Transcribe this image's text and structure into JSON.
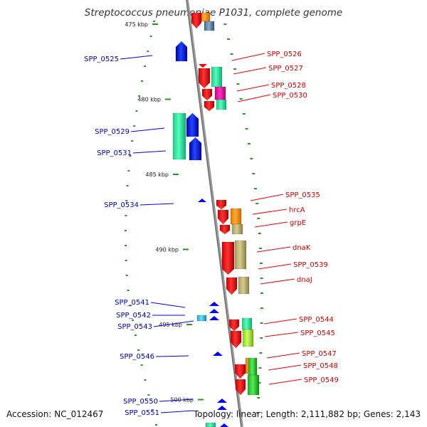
{
  "title": "Streptococcus pneumoniae P1031, complete genome",
  "footer": {
    "accession": "Accession: NC_012467",
    "meta": "Topology: linear; Length: 2,111,882 bp; Genes: 2,143"
  },
  "scale": {
    "ticks": [
      {
        "kbp": 475,
        "label": "475 kbp"
      },
      {
        "kbp": 480,
        "label": "480 kbp"
      },
      {
        "kbp": 485,
        "label": "485 kbp"
      },
      {
        "kbp": 490,
        "label": "490 kbp"
      },
      {
        "kbp": 495,
        "label": "495 kbp"
      },
      {
        "kbp": 500,
        "label": "500 kbp"
      }
    ]
  },
  "genes_left": [
    {
      "label": "SPP_0525",
      "color": "#0000ee"
    },
    {
      "label": "SPP_0529",
      "color": "#0000ee"
    },
    {
      "label": "SPP_0531",
      "color": "#0000ee"
    },
    {
      "label": "SPP_0534",
      "color": "#0000ee"
    },
    {
      "label": "SPP_0541",
      "color": "#0000ee"
    },
    {
      "label": "SPP_0542",
      "color": "#0000ee"
    },
    {
      "label": "SPP_0543",
      "color": "#0000ee"
    },
    {
      "label": "SPP_0546",
      "color": "#0000ee"
    },
    {
      "label": "SPP_0550",
      "color": "#0000ee"
    },
    {
      "label": "SPP_0551",
      "color": "#0000ee"
    }
  ],
  "genes_right": [
    {
      "label": "SPP_0526"
    },
    {
      "label": "SPP_0527"
    },
    {
      "label": "SPP_0528"
    },
    {
      "label": "SPP_0530"
    },
    {
      "label": "SPP_0535"
    },
    {
      "label": "hrcA"
    },
    {
      "label": "grpE"
    },
    {
      "label": "dnaK"
    },
    {
      "label": "SPP_0539"
    },
    {
      "label": "dnaJ"
    },
    {
      "label": "SPP_0544"
    },
    {
      "label": "SPP_0545"
    },
    {
      "label": "SPP_0547"
    },
    {
      "label": "SPP_0548"
    },
    {
      "label": "SPP_0549"
    }
  ],
  "colors": {
    "forward_strand": "#ee0000",
    "reverse_strand": "#0000ee",
    "axis": "#999999",
    "ticks": "#229922"
  }
}
